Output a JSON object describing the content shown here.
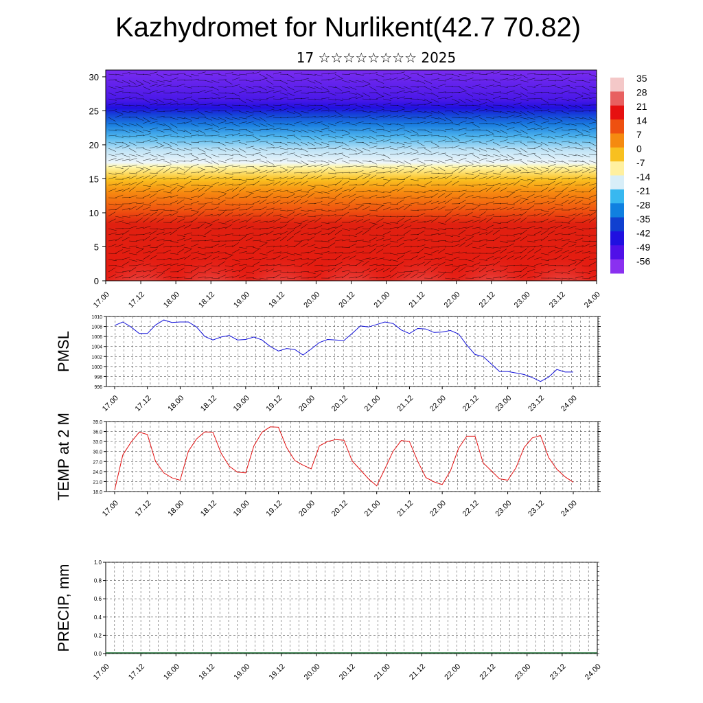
{
  "header": {
    "title": "Kazhydromet for Nurlikent(42.7 70.82)",
    "subtitle": "17 ☆☆☆☆☆☆☆☆ 2025"
  },
  "colors": {
    "pmsl_line": "#1010d8",
    "temp_line": "#e01010",
    "grid": "#555555",
    "axis": "#000000"
  },
  "chart_data": [
    {
      "type": "heatmap",
      "title": "",
      "y_ticks": [
        "0",
        "5",
        "10",
        "15",
        "20",
        "25",
        "30"
      ],
      "ylim": [
        0,
        31
      ],
      "x_ticks": [
        "17.00",
        "17.12",
        "18.00",
        "18.12",
        "19.00",
        "19.12",
        "20.00",
        "20.12",
        "21.00",
        "21.12",
        "22.00",
        "22.12",
        "23.00",
        "23.12",
        "24.00"
      ],
      "colorbar_labels": [
        "35",
        "28",
        "21",
        "14",
        "7",
        "0",
        "-7",
        "-14",
        "-21",
        "-28",
        "-35",
        "-42",
        "-49",
        "-56"
      ],
      "colorbar_colors": [
        "#f4c8c8",
        "#e86060",
        "#e61010",
        "#ee5010",
        "#f58a10",
        "#f8c020",
        "#fff0a0",
        "#d8eef8",
        "#38b8f0",
        "#1080e0",
        "#1040d0",
        "#2010e0",
        "#5010e8",
        "#8a30f0"
      ],
      "overlay": "wind barbs"
    },
    {
      "type": "line",
      "ylabel": "PMSL",
      "ylim": [
        996,
        1010
      ],
      "y_ticks": [
        "996",
        "998",
        "1000",
        "1002",
        "1004",
        "1006",
        "1008",
        "1010"
      ],
      "x_ticks": [
        "17.00",
        "17.12",
        "18.00",
        "18.12",
        "19.00",
        "19.12",
        "20.00",
        "20.12",
        "21.00",
        "21.12",
        "22.00",
        "22.12",
        "23.00",
        "23.12",
        "24.00"
      ],
      "series": [
        {
          "values": [
            1008.2,
            1008.9,
            1007.9,
            1006.6,
            1006.6,
            1008.3,
            1009.3,
            1008.8,
            1008.9,
            1008.9,
            1007.9,
            1006.0,
            1005.3,
            1005.9,
            1006.2,
            1005.3,
            1005.4,
            1005.9,
            1005.3,
            1004.0,
            1003.1,
            1003.6,
            1003.4,
            1002.3,
            1003.5,
            1004.8,
            1005.4,
            1005.3,
            1005.2,
            1006.6,
            1008.1,
            1007.9,
            1008.4,
            1008.9,
            1008.6,
            1007.3,
            1006.6,
            1007.6,
            1007.5,
            1006.8,
            1006.9,
            1007.2,
            1006.5,
            1004.3,
            1002.4,
            1002.0,
            1000.5,
            999.0,
            999.0,
            998.7,
            998.4,
            997.8,
            997.0,
            997.9,
            999.4,
            998.9,
            998.9
          ]
        }
      ]
    },
    {
      "type": "line",
      "ylabel": "TEMP at 2 M",
      "ylim": [
        18,
        39
      ],
      "y_ticks": [
        "18.0",
        "21.0",
        "24.0",
        "27.0",
        "30.0",
        "33.0",
        "36.0",
        "39.0"
      ],
      "x_ticks": [
        "17.00",
        "17.12",
        "18.00",
        "18.12",
        "19.00",
        "19.12",
        "20.00",
        "20.12",
        "21.00",
        "21.12",
        "22.00",
        "22.12",
        "23.00",
        "23.12",
        "24.00"
      ],
      "series": [
        {
          "values": [
            18.5,
            29.0,
            32.8,
            35.8,
            35.1,
            27.0,
            23.6,
            22.1,
            21.4,
            30.1,
            33.8,
            35.9,
            35.8,
            29.5,
            25.6,
            23.8,
            23.6,
            31.7,
            35.8,
            37.4,
            37.3,
            31.2,
            27.3,
            25.9,
            24.8,
            31.7,
            33.0,
            33.6,
            33.4,
            27.2,
            24.5,
            21.8,
            19.7,
            24.8,
            30.1,
            33.3,
            33.0,
            27.1,
            22.2,
            20.9,
            20.1,
            24.2,
            31.0,
            34.6,
            34.6,
            26.6,
            24.2,
            21.8,
            21.4,
            25.1,
            31.2,
            34.1,
            34.8,
            28.2,
            24.7,
            22.4,
            20.8
          ]
        }
      ]
    },
    {
      "type": "bar",
      "ylabel": "PRECIP, mm",
      "ylim": [
        0,
        1
      ],
      "y_ticks": [
        "0.0",
        "0.2",
        "0.4",
        "0.6",
        "0.8",
        "1.0"
      ],
      "x_ticks": [
        "17.00",
        "17.12",
        "18.00",
        "18.12",
        "19.00",
        "19.12",
        "20.00",
        "20.12",
        "21.00",
        "21.12",
        "22.00",
        "22.12",
        "23.00",
        "23.12",
        "24.00"
      ],
      "values": []
    }
  ]
}
